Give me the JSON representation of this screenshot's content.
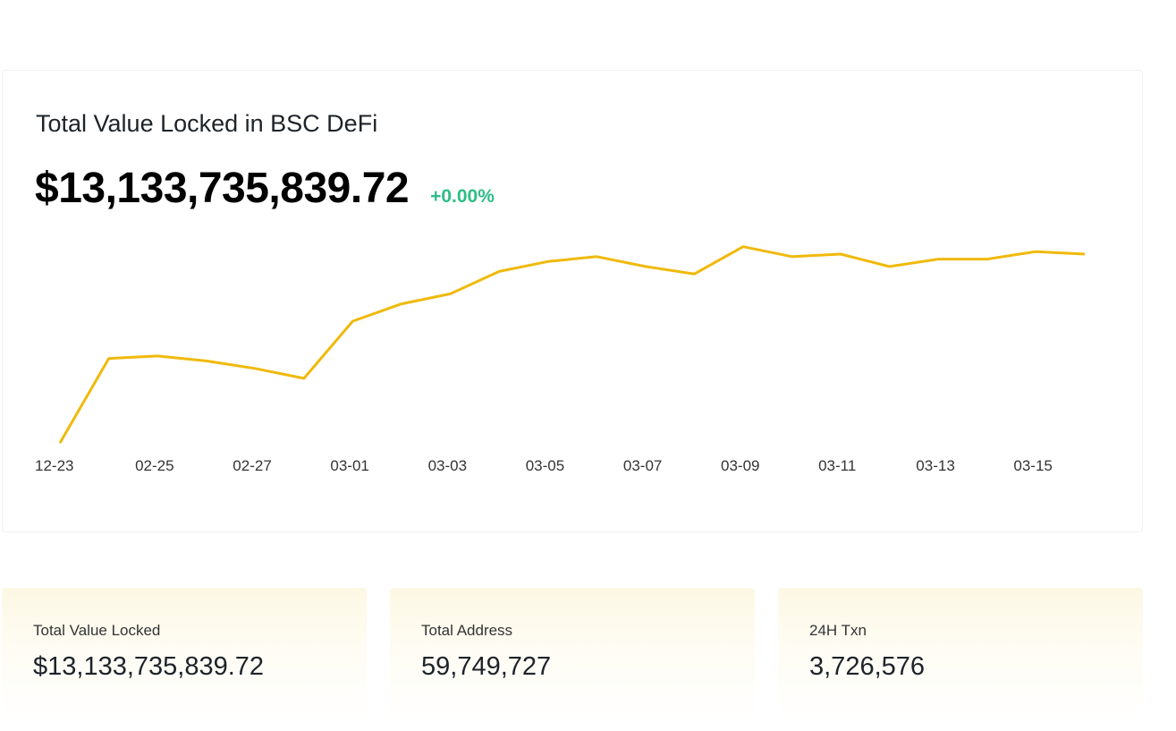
{
  "header": {
    "title": "Total Value Locked in BSC DeFi",
    "tvl_value": "$13,133,735,839.72",
    "change": "+0.00%"
  },
  "colors": {
    "line": "#f0b90b",
    "change_positive": "#2ebd85",
    "card_bg": "#fdf8e4"
  },
  "chart_data": {
    "type": "line",
    "title": "",
    "xlabel": "",
    "ylabel": "",
    "grid": false,
    "x_tick_labels": [
      "12-23",
      "02-25",
      "02-27",
      "03-01",
      "03-03",
      "03-05",
      "03-07",
      "03-09",
      "03-11",
      "03-13",
      "03-15"
    ],
    "series": [
      {
        "values": [
          8.0,
          11.4,
          11.5,
          11.3,
          11.0,
          10.6,
          12.9,
          13.6,
          14.0,
          14.9,
          15.3,
          15.5,
          15.1,
          14.8,
          15.9,
          15.5,
          15.6,
          15.1,
          15.4,
          15.4,
          15.7,
          15.6
        ]
      }
    ],
    "ylim": [
      7.5,
      16.5
    ]
  },
  "stats": [
    {
      "label": "Total Value Locked",
      "value": "$13,133,735,839.72"
    },
    {
      "label": "Total Address",
      "value": "59,749,727"
    },
    {
      "label": "24H Txn",
      "value": "3,726,576"
    }
  ]
}
